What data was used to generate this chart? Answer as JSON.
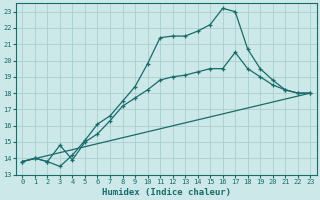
{
  "xlabel": "Humidex (Indice chaleur)",
  "background_color": "#cce8e8",
  "grid_color": "#aacfcf",
  "line_color": "#1a6b6b",
  "xlim": [
    -0.5,
    23.5
  ],
  "ylim": [
    13,
    23.5
  ],
  "yticks": [
    13,
    14,
    15,
    16,
    17,
    18,
    19,
    20,
    21,
    22,
    23
  ],
  "xticks": [
    0,
    1,
    2,
    3,
    4,
    5,
    6,
    7,
    8,
    9,
    10,
    11,
    12,
    13,
    14,
    15,
    16,
    17,
    18,
    19,
    20,
    21,
    22,
    23
  ],
  "line1_x": [
    0,
    1,
    2,
    3,
    4,
    5,
    6,
    7,
    8,
    9,
    10,
    11,
    12,
    13,
    14,
    15,
    16,
    17,
    18,
    19,
    20,
    21,
    22,
    23
  ],
  "line1_y": [
    13.8,
    14.0,
    13.8,
    13.5,
    14.2,
    15.1,
    16.1,
    16.6,
    17.5,
    18.4,
    19.8,
    21.4,
    21.5,
    21.5,
    21.8,
    22.2,
    23.2,
    23.0,
    20.7,
    19.5,
    18.8,
    18.2,
    18.0,
    18.0
  ],
  "line2_x": [
    0,
    1,
    2,
    3,
    4,
    5,
    6,
    7,
    8,
    9,
    10,
    11,
    12,
    13,
    14,
    15,
    16,
    17,
    18,
    19,
    20,
    21,
    22,
    23
  ],
  "line2_y": [
    13.8,
    14.0,
    13.8,
    14.8,
    13.9,
    15.0,
    15.5,
    16.3,
    17.2,
    17.7,
    18.2,
    18.8,
    19.0,
    19.1,
    19.3,
    19.5,
    19.5,
    20.5,
    19.5,
    19.0,
    18.5,
    18.2,
    18.0,
    18.0
  ],
  "line3_x": [
    0,
    23
  ],
  "line3_y": [
    13.8,
    18.0
  ]
}
